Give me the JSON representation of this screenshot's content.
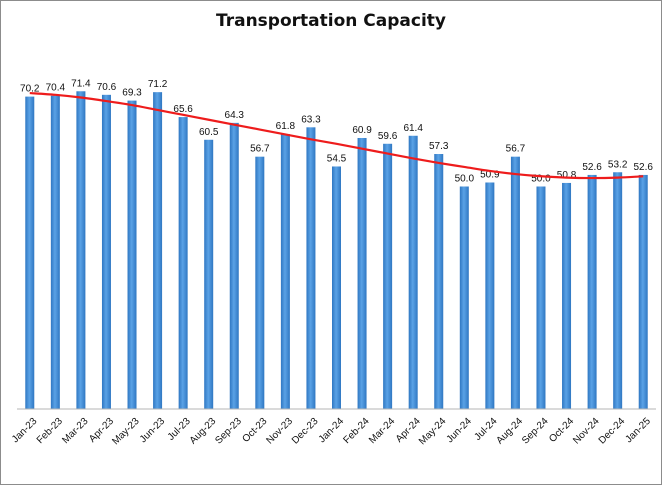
{
  "chart_data": {
    "type": "bar",
    "title": "Transportation Capacity",
    "xlabel": "",
    "ylabel": "",
    "ylim": [
      0,
      75
    ],
    "grid": false,
    "categories": [
      "Jan-23",
      "Feb-23",
      "Mar-23",
      "Apr-23",
      "May-23",
      "Jun-23",
      "Jul-23",
      "Aug-23",
      "Sep-23",
      "Oct-23",
      "Nov-23",
      "Dec-23",
      "Jan-24",
      "Feb-24",
      "Mar-24",
      "Apr-24",
      "May-24",
      "Jun-24",
      "Jul-24",
      "Aug-24",
      "Sep-24",
      "Oct-24",
      "Nov-24",
      "Dec-24",
      "Jan-25"
    ],
    "series": [
      {
        "name": "Transportation Capacity",
        "values": [
          70.2,
          70.4,
          71.4,
          70.6,
          69.3,
          71.2,
          65.6,
          60.5,
          64.3,
          56.7,
          61.8,
          63.3,
          54.5,
          60.9,
          59.6,
          61.4,
          57.3,
          50.0,
          50.9,
          56.7,
          50.0,
          50.8,
          52.6,
          53.2,
          52.6
        ]
      }
    ],
    "trendline": {
      "type": "polynomial",
      "values": [
        71.0,
        70.6,
        70.0,
        69.2,
        68.3,
        67.2,
        66.1,
        65.0,
        63.9,
        62.8,
        61.7,
        60.6,
        59.6,
        58.5,
        57.4,
        56.3,
        55.3,
        54.4,
        53.5,
        52.8,
        52.3,
        52.0,
        51.9,
        52.0,
        52.3
      ]
    },
    "colors": {
      "bar": "#5aa2e6",
      "bar_dark": "#2f77c2",
      "trendline": "#ee1c1c"
    }
  }
}
